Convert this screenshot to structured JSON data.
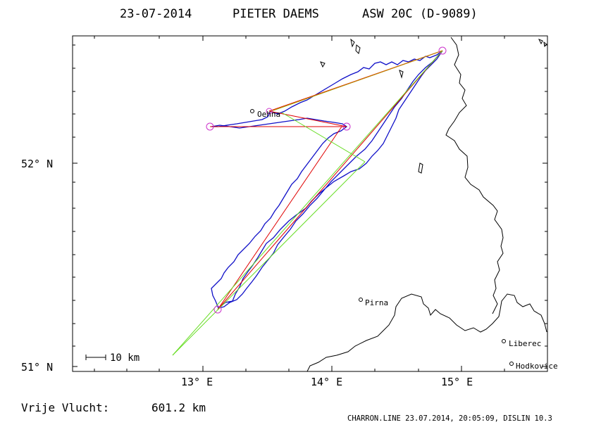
{
  "header": {
    "date": "23-07-2014",
    "pilot": "PIETER DAEMS",
    "glider": "ASW 20C (D-9089)"
  },
  "axes": {
    "lat_labels": [
      "52° N",
      "51° N"
    ],
    "lon_labels": [
      "13° E",
      "14° E",
      "15° E"
    ]
  },
  "scale_bar": {
    "label": "10 km"
  },
  "places": [
    {
      "name": "Oehna",
      "lon": 13.39,
      "lat": 52.26
    },
    {
      "name": "Pirna",
      "lon": 14.23,
      "lat": 51.34
    },
    {
      "name": "Liberec",
      "lon": 15.33,
      "lat": 51.13
    },
    {
      "name": "Hodkovice",
      "lon": 15.39,
      "lat": 51.02
    }
  ],
  "turnpoints": [
    {
      "lon": 13.13,
      "lat": 51.27
    },
    {
      "lon": 14.86,
      "lat": 52.55
    },
    {
      "lon": 13.52,
      "lat": 52.26
    },
    {
      "lon": 14.11,
      "lat": 52.18
    },
    {
      "lon": 13.06,
      "lat": 52.17
    }
  ],
  "footer": {
    "distance_label": "Vrije Vlucht:",
    "distance_value": "601.2 km",
    "program_line": "CHARRON.LINE 23.07.2014, 20:05:09, DISLIN 10.3"
  },
  "colors": {
    "track": "#1010c8",
    "task_red": "#e00000",
    "task_green": "#66dd22",
    "turnpoint": "#cc33cc",
    "border": "#000000"
  }
}
